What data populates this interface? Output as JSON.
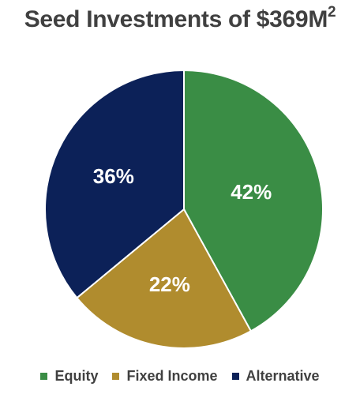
{
  "chart_data": {
    "type": "pie",
    "title": "Seed Investments of $369M",
    "title_superscript": "2",
    "categories": [
      "Equity",
      "Fixed Income",
      "Alternative"
    ],
    "values": [
      42,
      22,
      36
    ],
    "value_labels": [
      "42%",
      "22%",
      "36%"
    ],
    "colors": [
      "#3a8d45",
      "#b08c2e",
      "#0c2158"
    ],
    "legend_position": "bottom"
  }
}
